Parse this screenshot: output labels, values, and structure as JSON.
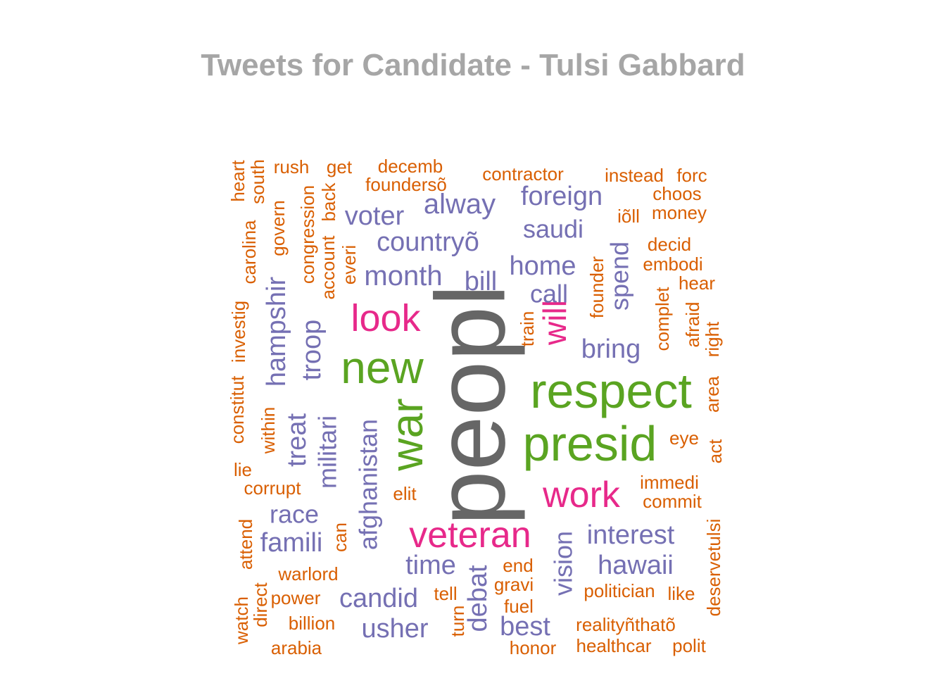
{
  "chart_data": {
    "type": "wordcloud",
    "title": "Tweets for Candidate - Tulsi Gabbard",
    "colors": {
      "title": "#a6a6a6",
      "gray": "#666666",
      "green": "#5aa421",
      "magenta": "#e7298a",
      "purple": "#7570b3",
      "orange": "#d95f02"
    },
    "words": [
      {
        "text": "peopl",
        "color": "gray",
        "rotated": true
      },
      {
        "text": "respect",
        "color": "green",
        "rotated": false
      },
      {
        "text": "presid",
        "color": "green",
        "rotated": false
      },
      {
        "text": "new",
        "color": "green",
        "rotated": false
      },
      {
        "text": "war",
        "color": "green",
        "rotated": true
      },
      {
        "text": "look",
        "color": "magenta",
        "rotated": false
      },
      {
        "text": "will",
        "color": "magenta",
        "rotated": true
      },
      {
        "text": "work",
        "color": "magenta",
        "rotated": false
      },
      {
        "text": "veteran",
        "color": "magenta",
        "rotated": false
      },
      {
        "text": "voter",
        "color": "purple",
        "rotated": false
      },
      {
        "text": "alway",
        "color": "purple",
        "rotated": false
      },
      {
        "text": "foreign",
        "color": "purple",
        "rotated": false
      },
      {
        "text": "saudi",
        "color": "purple",
        "rotated": false
      },
      {
        "text": "countryõ",
        "color": "purple",
        "rotated": false
      },
      {
        "text": "home",
        "color": "purple",
        "rotated": false
      },
      {
        "text": "month",
        "color": "purple",
        "rotated": false
      },
      {
        "text": "bill",
        "color": "purple",
        "rotated": false
      },
      {
        "text": "call",
        "color": "purple",
        "rotated": false
      },
      {
        "text": "spend",
        "color": "purple",
        "rotated": true
      },
      {
        "text": "bring",
        "color": "purple",
        "rotated": false
      },
      {
        "text": "hampshir",
        "color": "purple",
        "rotated": true
      },
      {
        "text": "troop",
        "color": "purple",
        "rotated": true
      },
      {
        "text": "treat",
        "color": "purple",
        "rotated": true
      },
      {
        "text": "militari",
        "color": "purple",
        "rotated": true
      },
      {
        "text": "afghanistan",
        "color": "purple",
        "rotated": true
      },
      {
        "text": "race",
        "color": "purple",
        "rotated": false
      },
      {
        "text": "famili",
        "color": "purple",
        "rotated": false
      },
      {
        "text": "interest",
        "color": "purple",
        "rotated": false
      },
      {
        "text": "vision",
        "color": "purple",
        "rotated": true
      },
      {
        "text": "hawaii",
        "color": "purple",
        "rotated": false
      },
      {
        "text": "time",
        "color": "purple",
        "rotated": false
      },
      {
        "text": "candid",
        "color": "purple",
        "rotated": false
      },
      {
        "text": "debat",
        "color": "purple",
        "rotated": true
      },
      {
        "text": "best",
        "color": "purple",
        "rotated": false
      },
      {
        "text": "usher",
        "color": "purple",
        "rotated": false
      },
      {
        "text": "heart",
        "color": "orange",
        "rotated": true
      },
      {
        "text": "south",
        "color": "orange",
        "rotated": true
      },
      {
        "text": "rush",
        "color": "orange",
        "rotated": false
      },
      {
        "text": "get",
        "color": "orange",
        "rotated": false
      },
      {
        "text": "decemb",
        "color": "orange",
        "rotated": false
      },
      {
        "text": "foundersõ",
        "color": "orange",
        "rotated": false
      },
      {
        "text": "contractor",
        "color": "orange",
        "rotated": false
      },
      {
        "text": "instead",
        "color": "orange",
        "rotated": false
      },
      {
        "text": "forc",
        "color": "orange",
        "rotated": false
      },
      {
        "text": "choos",
        "color": "orange",
        "rotated": false
      },
      {
        "text": "iõll",
        "color": "orange",
        "rotated": false
      },
      {
        "text": "money",
        "color": "orange",
        "rotated": false
      },
      {
        "text": "decid",
        "color": "orange",
        "rotated": false
      },
      {
        "text": "embodi",
        "color": "orange",
        "rotated": false
      },
      {
        "text": "hear",
        "color": "orange",
        "rotated": false
      },
      {
        "text": "carolina",
        "color": "orange",
        "rotated": true
      },
      {
        "text": "govern",
        "color": "orange",
        "rotated": true
      },
      {
        "text": "congression",
        "color": "orange",
        "rotated": true
      },
      {
        "text": "account",
        "color": "orange",
        "rotated": true
      },
      {
        "text": "back",
        "color": "orange",
        "rotated": true
      },
      {
        "text": "everi",
        "color": "orange",
        "rotated": true
      },
      {
        "text": "investig",
        "color": "orange",
        "rotated": true
      },
      {
        "text": "founder",
        "color": "orange",
        "rotated": true
      },
      {
        "text": "train",
        "color": "orange",
        "rotated": true
      },
      {
        "text": "complet",
        "color": "orange",
        "rotated": true
      },
      {
        "text": "afraid",
        "color": "orange",
        "rotated": true
      },
      {
        "text": "right",
        "color": "orange",
        "rotated": true
      },
      {
        "text": "area",
        "color": "orange",
        "rotated": true
      },
      {
        "text": "constitut",
        "color": "orange",
        "rotated": true
      },
      {
        "text": "within",
        "color": "orange",
        "rotated": true
      },
      {
        "text": "lie",
        "color": "orange",
        "rotated": false
      },
      {
        "text": "corrupt",
        "color": "orange",
        "rotated": false
      },
      {
        "text": "elit",
        "color": "orange",
        "rotated": false
      },
      {
        "text": "eye",
        "color": "orange",
        "rotated": false
      },
      {
        "text": "act",
        "color": "orange",
        "rotated": true
      },
      {
        "text": "immedi",
        "color": "orange",
        "rotated": false
      },
      {
        "text": "commit",
        "color": "orange",
        "rotated": false
      },
      {
        "text": "attend",
        "color": "orange",
        "rotated": true
      },
      {
        "text": "can",
        "color": "orange",
        "rotated": true
      },
      {
        "text": "warlord",
        "color": "orange",
        "rotated": false
      },
      {
        "text": "end",
        "color": "orange",
        "rotated": false
      },
      {
        "text": "gravi",
        "color": "orange",
        "rotated": false
      },
      {
        "text": "deservetulsi",
        "color": "orange",
        "rotated": true
      },
      {
        "text": "politician",
        "color": "orange",
        "rotated": false
      },
      {
        "text": "like",
        "color": "orange",
        "rotated": false
      },
      {
        "text": "direct",
        "color": "orange",
        "rotated": true
      },
      {
        "text": "power",
        "color": "orange",
        "rotated": false
      },
      {
        "text": "tell",
        "color": "orange",
        "rotated": false
      },
      {
        "text": "fuel",
        "color": "orange",
        "rotated": false
      },
      {
        "text": "watch",
        "color": "orange",
        "rotated": true
      },
      {
        "text": "billion",
        "color": "orange",
        "rotated": false
      },
      {
        "text": "turn",
        "color": "orange",
        "rotated": true
      },
      {
        "text": "realityñthatõ",
        "color": "orange",
        "rotated": false
      },
      {
        "text": "arabia",
        "color": "orange",
        "rotated": false
      },
      {
        "text": "honor",
        "color": "orange",
        "rotated": false
      },
      {
        "text": "healthcar",
        "color": "orange",
        "rotated": false
      },
      {
        "text": "polit",
        "color": "orange",
        "rotated": false
      }
    ]
  }
}
